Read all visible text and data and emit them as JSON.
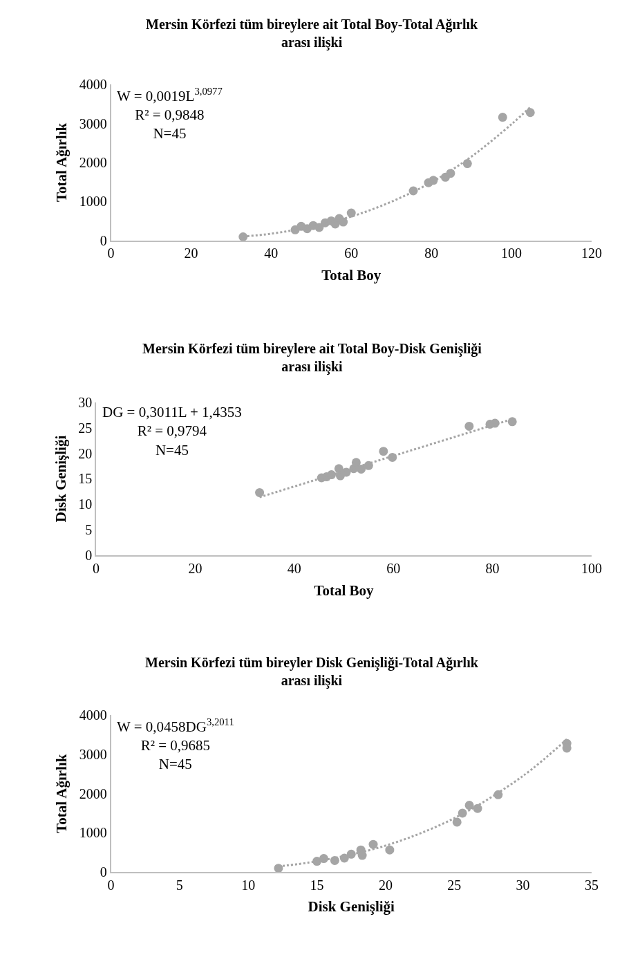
{
  "chart_data": [
    {
      "type": "scatter",
      "title": "Mersin Körfezi tüm bireylere ait Total Boy-Total Ağırlık\narası ilişki",
      "xlabel": "Total Boy",
      "ylabel": "Total Ağırlık",
      "xlim": [
        0,
        120
      ],
      "xticks": [
        0,
        20,
        40,
        60,
        80,
        100,
        120
      ],
      "ylim": [
        0,
        4000
      ],
      "yticks": [
        0,
        1000,
        2000,
        3000,
        4000
      ],
      "grid": false,
      "annotations": [
        "W = 0,0019L$^{3,0977}$\nR² = 0,9848\nN=45"
      ],
      "series": [
        {
          "color": "#a5a5a5",
          "marker": "circle",
          "x": [
            33,
            46,
            47.5,
            49,
            50.5,
            52,
            53.5,
            55,
            56,
            57,
            58,
            60,
            75.5,
            79.3,
            80.5,
            83.5,
            84.8,
            89,
            97.8,
            104.7
          ],
          "values": [
            90,
            270,
            360,
            300,
            380,
            330,
            450,
            500,
            420,
            560,
            470,
            700,
            1270,
            1480,
            1540,
            1620,
            1720,
            1970,
            3160,
            3280
          ]
        },
        {
          "type": "line",
          "line_style": "dotted",
          "color": "#a5a5a5",
          "x": [
            33,
            40,
            50,
            60,
            70,
            80,
            90,
            100,
            104.7
          ],
          "values": [
            100,
            170,
            350,
            610,
            990,
            1490,
            2150,
            2980,
            3420
          ]
        }
      ]
    },
    {
      "type": "scatter",
      "title": "Mersin Körfezi tüm bireylere ait Total Boy-Disk Genişliği\narası ilişki",
      "xlabel": "Total Boy",
      "ylabel": "Disk Genişliği",
      "xlim": [
        0,
        100
      ],
      "xticks": [
        0,
        20,
        40,
        60,
        80,
        100
      ],
      "ylim": [
        0,
        30
      ],
      "yticks": [
        0,
        5,
        10,
        15,
        20,
        25,
        30
      ],
      "grid": false,
      "annotations": [
        "DG = 0,3011L + 1,4353\nR² = 0,9794\nN=45"
      ],
      "series": [
        {
          "color": "#a5a5a5",
          "marker": "circle",
          "x": [
            33,
            45.5,
            46.5,
            47.5,
            49,
            49.3,
            50.5,
            52,
            52.5,
            53.5,
            55,
            58,
            59.8,
            75.3,
            79.5,
            80.5,
            84
          ],
          "values": [
            12.3,
            15.2,
            15.4,
            15.8,
            17.0,
            15.6,
            16.3,
            17.0,
            18.2,
            16.9,
            17.6,
            20.4,
            19.2,
            25.3,
            25.7,
            25.9,
            26.2
          ]
        },
        {
          "type": "line",
          "line_style": "dotted",
          "color": "#a5a5a5",
          "x": [
            33,
            84
          ],
          "values": [
            11.4,
            26.7
          ]
        }
      ]
    },
    {
      "type": "scatter",
      "title": "Mersin Körfezi tüm bireyler Disk Genişliği-Total Ağırlık\narası ilişki",
      "xlabel": "Disk Genişliği",
      "ylabel": "Total Ağırlık",
      "xlim": [
        0,
        35
      ],
      "xticks": [
        0,
        5,
        10,
        15,
        20,
        25,
        30,
        35
      ],
      "ylim": [
        0,
        4000
      ],
      "yticks": [
        0,
        1000,
        2000,
        3000,
        4000
      ],
      "grid": false,
      "annotations": [
        "W = 0,0458DG$^{3,2011}$\nR² = 0,9685\nN=45"
      ],
      "series": [
        {
          "color": "#a5a5a5",
          "marker": "circle",
          "x": [
            12.2,
            15,
            15.5,
            16.3,
            17,
            17.5,
            18.2,
            18.3,
            19.1,
            20.3,
            25.2,
            25.6,
            26.1,
            26.7,
            28.2,
            33.2,
            33.2
          ],
          "values": [
            90,
            270,
            340,
            290,
            350,
            450,
            560,
            420,
            700,
            560,
            1270,
            1500,
            1700,
            1620,
            1970,
            3280,
            3160
          ]
        },
        {
          "type": "line",
          "line_style": "dotted",
          "color": "#a5a5a5",
          "x": [
            12.2,
            15,
            20,
            25,
            30,
            33.2
          ],
          "values": [
            140,
            270,
            670,
            1370,
            2450,
            3390
          ]
        }
      ]
    }
  ]
}
